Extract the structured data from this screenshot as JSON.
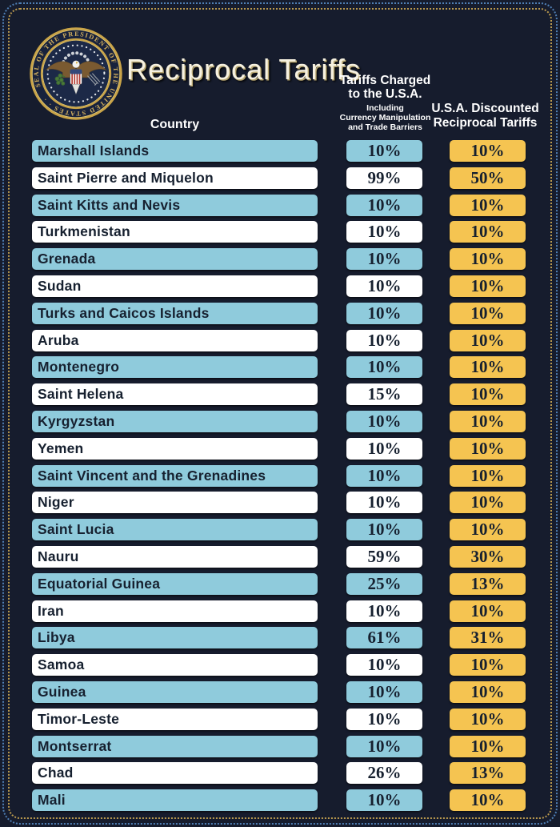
{
  "page": {
    "title": "Reciprocal Tariffs",
    "seal_text": "SEAL OF THE PRESIDENT OF THE UNITED STATES · ·"
  },
  "table": {
    "columns": {
      "country": "Country",
      "charged_line1": "Tariffs Charged",
      "charged_line2": "to the U.S.A.",
      "charged_sub1": "Including",
      "charged_sub2": "Currency Manipulation",
      "charged_sub3": "and Trade Barriers",
      "discounted_line1": "U.S.A. Discounted",
      "discounted_line2": "Reciprocal Tariffs"
    },
    "rows": [
      {
        "country": "Marshall Islands",
        "charged": "10%",
        "discounted": "10%"
      },
      {
        "country": "Saint Pierre and Miquelon",
        "charged": "99%",
        "discounted": "50%"
      },
      {
        "country": "Saint Kitts and Nevis",
        "charged": "10%",
        "discounted": "10%"
      },
      {
        "country": "Turkmenistan",
        "charged": "10%",
        "discounted": "10%"
      },
      {
        "country": "Grenada",
        "charged": "10%",
        "discounted": "10%"
      },
      {
        "country": "Sudan",
        "charged": "10%",
        "discounted": "10%"
      },
      {
        "country": "Turks and Caicos Islands",
        "charged": "10%",
        "discounted": "10%"
      },
      {
        "country": "Aruba",
        "charged": "10%",
        "discounted": "10%"
      },
      {
        "country": "Montenegro",
        "charged": "10%",
        "discounted": "10%"
      },
      {
        "country": "Saint Helena",
        "charged": "15%",
        "discounted": "10%"
      },
      {
        "country": "Kyrgyzstan",
        "charged": "10%",
        "discounted": "10%"
      },
      {
        "country": "Yemen",
        "charged": "10%",
        "discounted": "10%"
      },
      {
        "country": "Saint Vincent and the Grenadines",
        "charged": "10%",
        "discounted": "10%"
      },
      {
        "country": "Niger",
        "charged": "10%",
        "discounted": "10%"
      },
      {
        "country": "Saint Lucia",
        "charged": "10%",
        "discounted": "10%"
      },
      {
        "country": "Nauru",
        "charged": "59%",
        "discounted": "30%"
      },
      {
        "country": "Equatorial Guinea",
        "charged": "25%",
        "discounted": "13%"
      },
      {
        "country": "Iran",
        "charged": "10%",
        "discounted": "10%"
      },
      {
        "country": "Libya",
        "charged": "61%",
        "discounted": "31%"
      },
      {
        "country": "Samoa",
        "charged": "10%",
        "discounted": "10%"
      },
      {
        "country": "Guinea",
        "charged": "10%",
        "discounted": "10%"
      },
      {
        "country": "Timor-Leste",
        "charged": "10%",
        "discounted": "10%"
      },
      {
        "country": "Montserrat",
        "charged": "10%",
        "discounted": "10%"
      },
      {
        "country": "Chad",
        "charged": "26%",
        "discounted": "13%"
      },
      {
        "country": "Mali",
        "charged": "10%",
        "discounted": "10%"
      }
    ]
  },
  "colors": {
    "bg": "#161c2d",
    "row_blue": "#8fcbdc",
    "yellow": "#f5c451",
    "border_blue": "#4f7fb5",
    "border_gold": "#bb9a4e",
    "cream": "#f6f1e0",
    "text_dark": "#16202f",
    "header_white": "#ffffff",
    "seal_gold": "#cda74d"
  },
  "chart_data": {
    "type": "table",
    "title": "Reciprocal Tariffs",
    "columns": [
      "Country",
      "Tariffs Charged to the U.S.A. Including Currency Manipulation and Trade Barriers",
      "U.S.A. Discounted Reciprocal Tariffs"
    ],
    "categories": [
      "Marshall Islands",
      "Saint Pierre and Miquelon",
      "Saint Kitts and Nevis",
      "Turkmenistan",
      "Grenada",
      "Sudan",
      "Turks and Caicos Islands",
      "Aruba",
      "Montenegro",
      "Saint Helena",
      "Kyrgyzstan",
      "Yemen",
      "Saint Vincent and the Grenadines",
      "Niger",
      "Saint Lucia",
      "Nauru",
      "Equatorial Guinea",
      "Iran",
      "Libya",
      "Samoa",
      "Guinea",
      "Timor-Leste",
      "Montserrat",
      "Chad",
      "Mali"
    ],
    "series": [
      {
        "name": "Tariffs Charged to the U.S.A.",
        "unit": "%",
        "values": [
          10,
          99,
          10,
          10,
          10,
          10,
          10,
          10,
          10,
          15,
          10,
          10,
          10,
          10,
          10,
          59,
          25,
          10,
          61,
          10,
          10,
          10,
          10,
          26,
          10
        ]
      },
      {
        "name": "U.S.A. Discounted Reciprocal Tariffs",
        "unit": "%",
        "values": [
          10,
          50,
          10,
          10,
          10,
          10,
          10,
          10,
          10,
          10,
          10,
          10,
          10,
          10,
          10,
          30,
          13,
          10,
          31,
          10,
          10,
          10,
          10,
          13,
          10
        ]
      }
    ]
  }
}
